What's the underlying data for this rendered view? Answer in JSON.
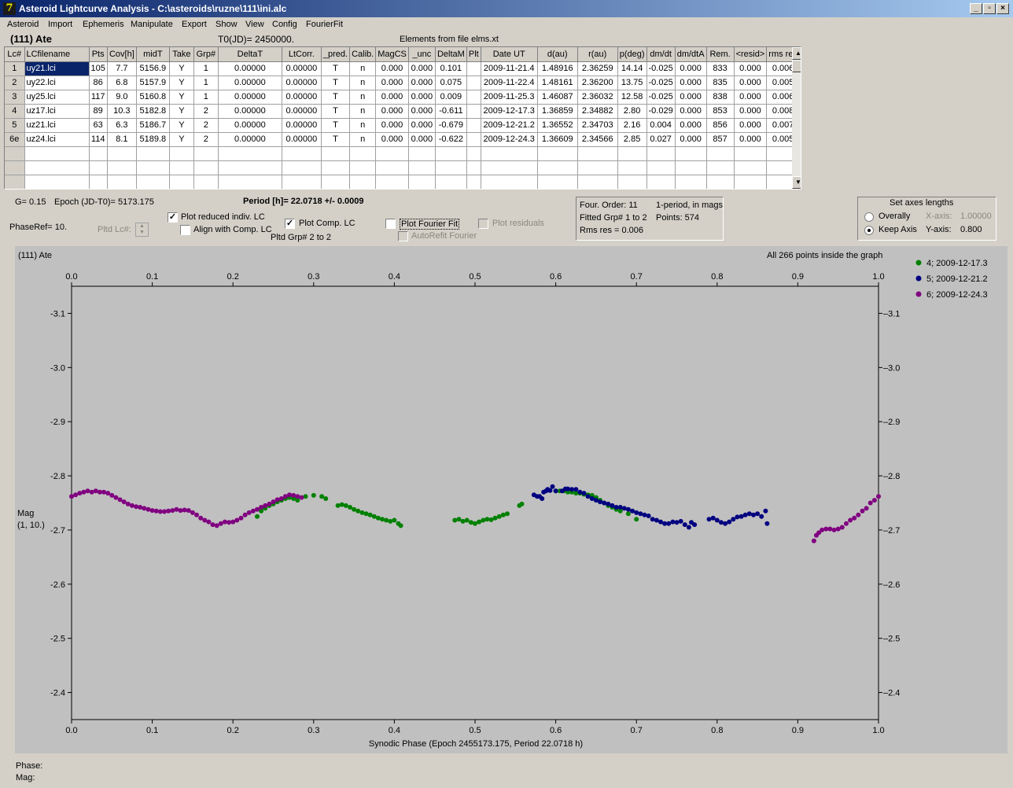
{
  "window": {
    "title": "Asteroid Lightcurve Analysis - C:\\asteroids\\ruzne\\111\\ini.alc",
    "icon": "7",
    "buttons": [
      "_",
      "▫",
      "×"
    ]
  },
  "menu": [
    "Asteroid",
    "Import",
    "Ephemeris",
    "Manipulate",
    "Export",
    "Show",
    "View",
    "Config",
    "FourierFit"
  ],
  "header": {
    "asteroid": "(111) Ate",
    "t0": "T0(JD)= 2450000.",
    "elements": "Elements from file elms.xt"
  },
  "grid": {
    "columns": [
      "Lc#",
      "LCfilename",
      "Pts",
      "Cov[h]",
      "midT",
      "Take",
      "Grp#",
      "DeltaT",
      "LtCorr.",
      "_pred.",
      "Calib.",
      "MagCS",
      "_unc",
      "DeltaM",
      "Plt",
      "Date UT",
      "d(au)",
      "r(au)",
      "p(deg)",
      "dm/dt",
      "dm/dtA",
      "Rem.",
      "<resid>",
      "rms res"
    ],
    "rows": [
      [
        "1",
        "uy21.lci",
        "105",
        "7.7",
        "5156.9",
        "Y",
        "1",
        "0.00000",
        "0.00000",
        "T",
        "n",
        "0.000",
        "0.000",
        "0.101",
        "",
        "2009-11-21.4",
        "1.48916",
        "2.36259",
        "14.14",
        "-0.025",
        "0.000",
        "833",
        "0.000",
        "0.006"
      ],
      [
        "2",
        "uy22.lci",
        "86",
        "6.8",
        "5157.9",
        "Y",
        "1",
        "0.00000",
        "0.00000",
        "T",
        "n",
        "0.000",
        "0.000",
        "0.075",
        "",
        "2009-11-22.4",
        "1.48161",
        "2.36200",
        "13.75",
        "-0.025",
        "0.000",
        "835",
        "0.000",
        "0.005"
      ],
      [
        "3",
        "uy25.lci",
        "117",
        "9.0",
        "5160.8",
        "Y",
        "1",
        "0.00000",
        "0.00000",
        "T",
        "n",
        "0.000",
        "0.000",
        "0.009",
        "",
        "2009-11-25.3",
        "1.46087",
        "2.36032",
        "12.58",
        "-0.025",
        "0.000",
        "838",
        "0.000",
        "0.006"
      ],
      [
        "4",
        "uz17.lci",
        "89",
        "10.3",
        "5182.8",
        "Y",
        "2",
        "0.00000",
        "0.00000",
        "T",
        "n",
        "0.000",
        "0.000",
        "-0.611",
        "",
        "2009-12-17.3",
        "1.36859",
        "2.34882",
        "2.80",
        "-0.029",
        "0.000",
        "853",
        "0.000",
        "0.008"
      ],
      [
        "5",
        "uz21.lci",
        "63",
        "6.3",
        "5186.7",
        "Y",
        "2",
        "0.00000",
        "0.00000",
        "T",
        "n",
        "0.000",
        "0.000",
        "-0.679",
        "",
        "2009-12-21.2",
        "1.36552",
        "2.34703",
        "2.16",
        "0.004",
        "0.000",
        "856",
        "0.000",
        "0.007"
      ],
      [
        "6e",
        "uz24.lci",
        "114",
        "8.1",
        "5189.8",
        "Y",
        "2",
        "0.00000",
        "0.00000",
        "T",
        "n",
        "0.000",
        "0.000",
        "-0.622",
        "",
        "2009-12-24.3",
        "1.36609",
        "2.34566",
        "2.85",
        "0.027",
        "0.000",
        "857",
        "0.000",
        "0.005"
      ]
    ]
  },
  "controls": {
    "g": "G= 0.15",
    "epoch": "Epoch (JD-T0)= 5173.175",
    "period": "Period [h]= 22.0718 +/- 0.0009",
    "phaseref": "PhaseRef= 10.",
    "pltd_lc": "Pltd Lc#:",
    "plot_reduced": "Plot reduced indiv. LC",
    "align_comp": "Align with Comp. LC",
    "plot_comp": "Plot Comp. LC",
    "pltd_grp": "Pltd Grp#  2   to   2",
    "plot_fourier": "Plot Fourier Fit",
    "autorefit": "AutoRefit Fourier",
    "plot_residuals": "Plot residuals",
    "four_order": "Four. Order: 11",
    "one_period": "1-period, in mags",
    "fitted_grp": "Fitted Grp# 1 to 2",
    "points": "Points: 574",
    "rms_res": "Rms res     = 0.006",
    "axes_title": "Set axes lengths",
    "overally": "Overally",
    "keep_axis": "Keep Axis",
    "x_axis_label": "X-axis:",
    "x_axis_value": "1.00000",
    "y_axis_label": "Y-axis:",
    "y_axis_value": "0.800"
  },
  "plot": {
    "title": "(111) Ate",
    "info": "All 266 points inside the graph",
    "ylabel": "Mag",
    "ylabel2": "(1, 10.)",
    "xlabel": "Synodic Phase (Epoch 2455173.175, Period 22.0718 h)"
  },
  "status": {
    "phase": "Phase:",
    "mag": "Mag:"
  },
  "colors": {
    "plot_bg": "#c0c0c0",
    "series_green": "#008000",
    "series_blue": "#000080",
    "series_purple": "#800080",
    "selection": "#0a246a"
  },
  "chart_data": {
    "type": "scatter",
    "xlabel": "Synodic Phase (Epoch 2455173.175, Period 22.0718 h)",
    "ylabel": "Mag",
    "xlim": [
      0.0,
      1.0
    ],
    "ylim": [
      -2.35,
      -3.15
    ],
    "y_inverted": true,
    "x_ticks": [
      "0.0",
      "0.1",
      "0.2",
      "0.3",
      "0.4",
      "0.5",
      "0.6",
      "0.7",
      "0.8",
      "0.9",
      "1.0"
    ],
    "y_ticks": [
      "-3.1",
      "-3.0",
      "-2.9",
      "-2.8",
      "-2.7",
      "-2.6",
      "-2.5",
      "-2.4"
    ],
    "legend_position": "top-right",
    "series": [
      {
        "name": "4; 2009-12-17.3",
        "color": "#008000",
        "points": [
          [
            0.23,
            -2.725
          ],
          [
            0.235,
            -2.735
          ],
          [
            0.24,
            -2.74
          ],
          [
            0.245,
            -2.745
          ],
          [
            0.25,
            -2.748
          ],
          [
            0.255,
            -2.752
          ],
          [
            0.26,
            -2.755
          ],
          [
            0.265,
            -2.758
          ],
          [
            0.27,
            -2.76
          ],
          [
            0.275,
            -2.758
          ],
          [
            0.28,
            -2.755
          ],
          [
            0.29,
            -2.762
          ],
          [
            0.3,
            -2.764
          ],
          [
            0.31,
            -2.762
          ],
          [
            0.315,
            -2.758
          ],
          [
            0.33,
            -2.745
          ],
          [
            0.335,
            -2.747
          ],
          [
            0.34,
            -2.745
          ],
          [
            0.345,
            -2.742
          ],
          [
            0.35,
            -2.738
          ],
          [
            0.355,
            -2.735
          ],
          [
            0.36,
            -2.732
          ],
          [
            0.365,
            -2.73
          ],
          [
            0.37,
            -2.728
          ],
          [
            0.375,
            -2.725
          ],
          [
            0.38,
            -2.722
          ],
          [
            0.385,
            -2.72
          ],
          [
            0.39,
            -2.718
          ],
          [
            0.395,
            -2.716
          ],
          [
            0.4,
            -2.718
          ],
          [
            0.405,
            -2.712
          ],
          [
            0.408,
            -2.708
          ],
          [
            0.475,
            -2.718
          ],
          [
            0.48,
            -2.72
          ],
          [
            0.485,
            -2.716
          ],
          [
            0.49,
            -2.718
          ],
          [
            0.495,
            -2.714
          ],
          [
            0.5,
            -2.712
          ],
          [
            0.505,
            -2.715
          ],
          [
            0.51,
            -2.718
          ],
          [
            0.515,
            -2.72
          ],
          [
            0.52,
            -2.719
          ],
          [
            0.525,
            -2.722
          ],
          [
            0.53,
            -2.725
          ],
          [
            0.535,
            -2.728
          ],
          [
            0.54,
            -2.73
          ],
          [
            0.555,
            -2.745
          ],
          [
            0.558,
            -2.748
          ],
          [
            0.6,
            -2.772
          ],
          [
            0.605,
            -2.772
          ],
          [
            0.61,
            -2.772
          ],
          [
            0.615,
            -2.77
          ],
          [
            0.62,
            -2.77
          ],
          [
            0.625,
            -2.768
          ],
          [
            0.63,
            -2.768
          ],
          [
            0.635,
            -2.766
          ],
          [
            0.64,
            -2.765
          ],
          [
            0.645,
            -2.764
          ],
          [
            0.65,
            -2.76
          ],
          [
            0.655,
            -2.755
          ],
          [
            0.66,
            -2.75
          ],
          [
            0.665,
            -2.745
          ],
          [
            0.67,
            -2.742
          ],
          [
            0.675,
            -2.738
          ],
          [
            0.68,
            -2.735
          ],
          [
            0.69,
            -2.73
          ],
          [
            0.7,
            -2.72
          ]
        ]
      },
      {
        "name": "5; 2009-12-21.2",
        "color": "#000080",
        "points": [
          [
            0.573,
            -2.765
          ],
          [
            0.577,
            -2.762
          ],
          [
            0.58,
            -2.762
          ],
          [
            0.583,
            -2.758
          ],
          [
            0.585,
            -2.77
          ],
          [
            0.588,
            -2.772
          ],
          [
            0.59,
            -2.775
          ],
          [
            0.593,
            -2.773
          ],
          [
            0.596,
            -2.78
          ],
          [
            0.6,
            -2.772
          ],
          [
            0.608,
            -2.772
          ],
          [
            0.612,
            -2.776
          ],
          [
            0.615,
            -2.776
          ],
          [
            0.62,
            -2.775
          ],
          [
            0.625,
            -2.775
          ],
          [
            0.63,
            -2.77
          ],
          [
            0.635,
            -2.768
          ],
          [
            0.64,
            -2.762
          ],
          [
            0.645,
            -2.758
          ],
          [
            0.65,
            -2.755
          ],
          [
            0.655,
            -2.752
          ],
          [
            0.66,
            -2.75
          ],
          [
            0.665,
            -2.748
          ],
          [
            0.67,
            -2.745
          ],
          [
            0.675,
            -2.742
          ],
          [
            0.68,
            -2.742
          ],
          [
            0.685,
            -2.74
          ],
          [
            0.69,
            -2.738
          ],
          [
            0.695,
            -2.735
          ],
          [
            0.7,
            -2.732
          ],
          [
            0.705,
            -2.73
          ],
          [
            0.71,
            -2.728
          ],
          [
            0.715,
            -2.726
          ],
          [
            0.72,
            -2.72
          ],
          [
            0.725,
            -2.718
          ],
          [
            0.73,
            -2.715
          ],
          [
            0.735,
            -2.712
          ],
          [
            0.74,
            -2.712
          ],
          [
            0.745,
            -2.715
          ],
          [
            0.75,
            -2.714
          ],
          [
            0.755,
            -2.716
          ],
          [
            0.76,
            -2.71
          ],
          [
            0.765,
            -2.705
          ],
          [
            0.768,
            -2.714
          ],
          [
            0.772,
            -2.71
          ],
          [
            0.79,
            -2.72
          ],
          [
            0.795,
            -2.722
          ],
          [
            0.8,
            -2.718
          ],
          [
            0.805,
            -2.714
          ],
          [
            0.81,
            -2.712
          ],
          [
            0.815,
            -2.715
          ],
          [
            0.82,
            -2.72
          ],
          [
            0.825,
            -2.724
          ],
          [
            0.83,
            -2.725
          ],
          [
            0.835,
            -2.728
          ],
          [
            0.84,
            -2.73
          ],
          [
            0.845,
            -2.728
          ],
          [
            0.85,
            -2.73
          ],
          [
            0.855,
            -2.725
          ],
          [
            0.86,
            -2.735
          ],
          [
            0.862,
            -2.712
          ]
        ]
      },
      {
        "name": "6; 2009-12-24.3",
        "color": "#800080",
        "points": [
          [
            0.0,
            -2.762
          ],
          [
            0.005,
            -2.765
          ],
          [
            0.01,
            -2.768
          ],
          [
            0.015,
            -2.77
          ],
          [
            0.02,
            -2.772
          ],
          [
            0.025,
            -2.77
          ],
          [
            0.03,
            -2.772
          ],
          [
            0.035,
            -2.77
          ],
          [
            0.04,
            -2.77
          ],
          [
            0.045,
            -2.768
          ],
          [
            0.05,
            -2.764
          ],
          [
            0.055,
            -2.76
          ],
          [
            0.06,
            -2.756
          ],
          [
            0.065,
            -2.752
          ],
          [
            0.07,
            -2.748
          ],
          [
            0.075,
            -2.745
          ],
          [
            0.08,
            -2.743
          ],
          [
            0.085,
            -2.742
          ],
          [
            0.09,
            -2.74
          ],
          [
            0.095,
            -2.738
          ],
          [
            0.1,
            -2.736
          ],
          [
            0.105,
            -2.735
          ],
          [
            0.11,
            -2.734
          ],
          [
            0.115,
            -2.734
          ],
          [
            0.12,
            -2.735
          ],
          [
            0.125,
            -2.736
          ],
          [
            0.13,
            -2.738
          ],
          [
            0.135,
            -2.736
          ],
          [
            0.14,
            -2.737
          ],
          [
            0.145,
            -2.736
          ],
          [
            0.15,
            -2.732
          ],
          [
            0.155,
            -2.728
          ],
          [
            0.16,
            -2.722
          ],
          [
            0.165,
            -2.718
          ],
          [
            0.17,
            -2.715
          ],
          [
            0.175,
            -2.71
          ],
          [
            0.18,
            -2.708
          ],
          [
            0.185,
            -2.712
          ],
          [
            0.19,
            -2.715
          ],
          [
            0.195,
            -2.714
          ],
          [
            0.2,
            -2.715
          ],
          [
            0.205,
            -2.718
          ],
          [
            0.21,
            -2.722
          ],
          [
            0.215,
            -2.728
          ],
          [
            0.22,
            -2.732
          ],
          [
            0.225,
            -2.735
          ],
          [
            0.23,
            -2.738
          ],
          [
            0.235,
            -2.742
          ],
          [
            0.24,
            -2.745
          ],
          [
            0.245,
            -2.748
          ],
          [
            0.25,
            -2.752
          ],
          [
            0.255,
            -2.756
          ],
          [
            0.26,
            -2.758
          ],
          [
            0.265,
            -2.762
          ],
          [
            0.27,
            -2.765
          ],
          [
            0.275,
            -2.764
          ],
          [
            0.28,
            -2.762
          ],
          [
            0.285,
            -2.76
          ],
          [
            0.92,
            -2.68
          ],
          [
            0.923,
            -2.69
          ],
          [
            0.926,
            -2.695
          ],
          [
            0.93,
            -2.7
          ],
          [
            0.935,
            -2.702
          ],
          [
            0.94,
            -2.702
          ],
          [
            0.945,
            -2.7
          ],
          [
            0.95,
            -2.702
          ],
          [
            0.955,
            -2.705
          ],
          [
            0.96,
            -2.712
          ],
          [
            0.965,
            -2.718
          ],
          [
            0.97,
            -2.722
          ],
          [
            0.975,
            -2.728
          ],
          [
            0.98,
            -2.735
          ],
          [
            0.985,
            -2.74
          ],
          [
            0.99,
            -2.75
          ],
          [
            0.995,
            -2.755
          ],
          [
            1.0,
            -2.762
          ]
        ]
      }
    ]
  }
}
